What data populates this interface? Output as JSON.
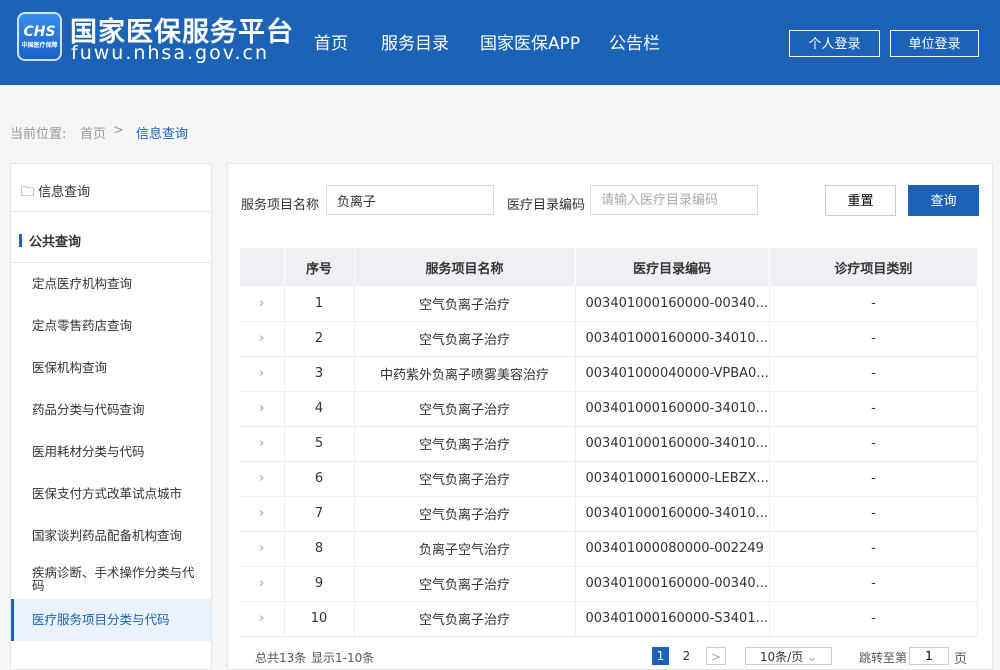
{
  "header": {
    "logo_text": "CHS",
    "logo_sub": "中国医疗保障",
    "title": "国家医保服务平台",
    "url": "fuwu.nhsa.gov.cn",
    "nav": [
      "首页",
      "服务目录",
      "国家医保APP",
      "公告栏"
    ],
    "personal_login": "个人登录",
    "org_login": "单位登录",
    "color": "#1c63b7"
  },
  "breadcrumb": {
    "label": "当前位置:",
    "home": "首页",
    "sep": ">",
    "current": "信息查询"
  },
  "sidebar": {
    "title": "信息查询",
    "section": "公共查询",
    "items": [
      "定点医疗机构查询",
      "定点零售药店查询",
      "医保机构查询",
      "药品分类与代码查询",
      "医用耗材分类与代码",
      "医保支付方式改革试点城市",
      "国家谈判药品配备机构查询",
      "疾病诊断、手术操作分类与代码",
      "医疗服务项目分类与代码"
    ],
    "active_index": 8
  },
  "search": {
    "name_label": "服务项目名称",
    "name_value": "负离子",
    "code_label": "医疗目录编码",
    "code_placeholder": "请输入医疗目录编码",
    "reset": "重置",
    "query": "查询"
  },
  "table": {
    "headers": [
      "",
      "序号",
      "服务项目名称",
      "医疗目录编码",
      "诊疗项目类别"
    ],
    "rows": [
      [
        "1",
        "空气负离子治疗",
        "003401000160000-00340...",
        "-"
      ],
      [
        "2",
        "空气负离子治疗",
        "003401000160000-34010...",
        "-"
      ],
      [
        "3",
        "中药紫外负离子喷雾美容治疗",
        "003401000040000-VPBA0...",
        "-"
      ],
      [
        "4",
        "空气负离子治疗",
        "003401000160000-34010...",
        "-"
      ],
      [
        "5",
        "空气负离子治疗",
        "003401000160000-34010...",
        "-"
      ],
      [
        "6",
        "空气负离子治疗",
        "003401000160000-LEBZX...",
        "-"
      ],
      [
        "7",
        "空气负离子治疗",
        "003401000160000-34010...",
        "-"
      ],
      [
        "8",
        "负离子空气治疗",
        " 003401000080000-002249",
        "-"
      ],
      [
        "9",
        "空气负离子治疗",
        "003401000160000-00340...",
        "-"
      ],
      [
        "10",
        "空气负离子治疗",
        "003401000160000-S3401...",
        "-"
      ]
    ]
  },
  "pagination": {
    "total": "总共13条",
    "showing": "显示1-10条",
    "pages": [
      "1",
      "2"
    ],
    "current": "1",
    "next": ">",
    "page_size": "10条/页",
    "jump_label": "跳转至第",
    "jump_value": "1",
    "jump_unit": "页"
  }
}
